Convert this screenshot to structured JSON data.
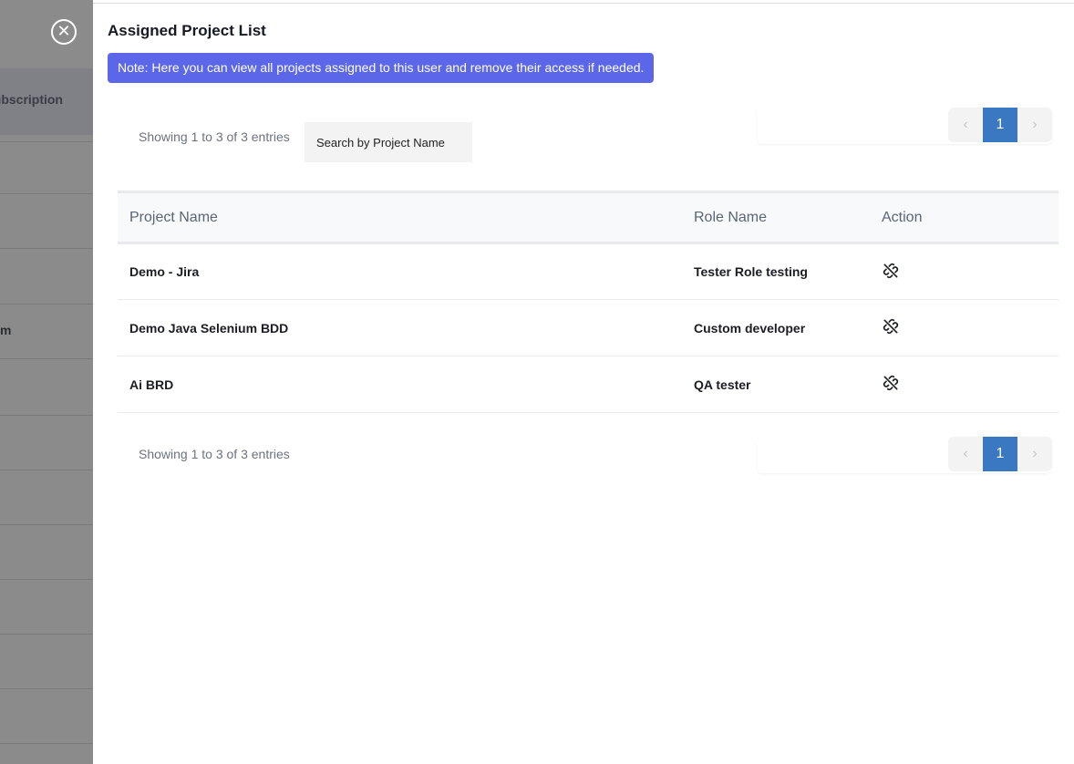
{
  "backdrop": {
    "header_text": "ubscription",
    "row_text": "m"
  },
  "modal": {
    "title": "Assigned Project List",
    "note": "Note: Here you can view all projects assigned to this user and remove their access if needed.",
    "info_top": "Showing 1 to 3 of 3 entries",
    "info_bottom": "Showing 1 to 3 of 3 entries",
    "search_placeholder": "Search by Project Name",
    "pagination": {
      "prev": "‹",
      "current": "1",
      "next": "›"
    },
    "columns": [
      "Project Name",
      "Role Name",
      "Action"
    ],
    "rows": [
      {
        "project": "Demo - Jira",
        "role": "Tester Role testing",
        "action_icon": "unlink-icon"
      },
      {
        "project": "Demo Java Selenium BDD",
        "role": "Custom developer",
        "action_icon": "unlink-icon"
      },
      {
        "project": "Ai BRD",
        "role": "QA tester",
        "action_icon": "unlink-icon"
      }
    ]
  },
  "colors": {
    "note_bg": "#5b67e8",
    "page_active": "#3b78c2"
  }
}
